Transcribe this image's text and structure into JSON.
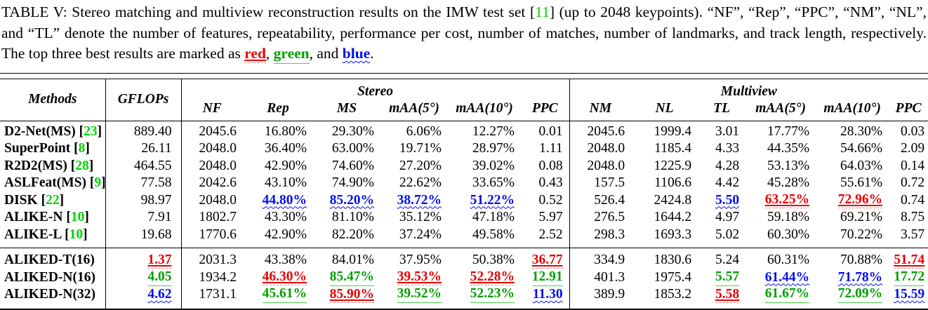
{
  "caption": {
    "segments": [
      {
        "style": "normal",
        "text": "TABLE V: Stereo matching and multiview reconstruction results on the IMW test set ["
      },
      {
        "style": "cite",
        "text": "11"
      },
      {
        "style": "normal",
        "text": "] (up to 2048 keypoints). “NF”, “Rep”, “PPC”, “NM”, “NL”, and “TL” denote the number of features, repeatability, performance per cost, number of matches, number of landmarks, and track length, respectively. The top three best results are marked as "
      },
      {
        "style": "red",
        "text": "red"
      },
      {
        "style": "normal",
        "text": ", "
      },
      {
        "style": "green",
        "text": "green"
      },
      {
        "style": "normal",
        "text": ", and "
      },
      {
        "style": "blue",
        "text": "blue"
      },
      {
        "style": "normal",
        "text": "."
      }
    ]
  },
  "colors": {
    "rank1": "#e80000",
    "rank2": "#00a000",
    "rank3": "#0010ee",
    "citation": "#00d400"
  },
  "table": {
    "cite_brackets": {
      "open": " [",
      "close": "]"
    },
    "header": {
      "methods": "Methods",
      "gflops": "GFLOPs",
      "stereo": "Stereo",
      "multiview": "Multiview",
      "stereo_cols": [
        "NF",
        "Rep",
        "MS",
        "mAA(5°)",
        "mAA(10°)",
        "PPC"
      ],
      "multiview_cols": [
        "NM",
        "NL",
        "TL",
        "mAA(5°)",
        "mAA(10°)",
        "PPC"
      ]
    },
    "groups": [
      {
        "rows": [
          {
            "method": "D2-Net(MS)",
            "cite": "23",
            "cells": [
              "889.40",
              "2045.6",
              "16.80%",
              "29.30%",
              "6.06%",
              "12.27%",
              "0.01",
              "2045.6",
              "1999.4",
              "3.01",
              "17.77%",
              "28.30%",
              "0.03"
            ]
          },
          {
            "method": "SuperPoint",
            "cite": "8",
            "cells": [
              "26.11",
              "2048.0",
              "36.40%",
              "63.00%",
              "19.71%",
              "28.97%",
              "1.11",
              "2048.0",
              "1185.4",
              "4.33",
              "44.35%",
              "54.66%",
              "2.09"
            ]
          },
          {
            "method": "R2D2(MS)",
            "cite": "28",
            "cells": [
              "464.55",
              "2048.0",
              "42.90%",
              "74.60%",
              "27.20%",
              "39.02%",
              "0.08",
              "2048.0",
              "1225.9",
              "4.28",
              "53.13%",
              "64.03%",
              "0.14"
            ]
          },
          {
            "method": "ASLFeat(MS)",
            "cite": "9",
            "cells": [
              "77.58",
              "2042.6",
              "43.10%",
              "74.90%",
              "22.62%",
              "33.65%",
              "0.43",
              "157.5",
              "1106.6",
              "4.42",
              "45.28%",
              "55.61%",
              "0.72"
            ]
          },
          {
            "method": "DISK",
            "cite": "22",
            "cells": [
              "98.97",
              "2048.0",
              {
                "v": "44.80%",
                "m": "blue"
              },
              {
                "v": "85.20%",
                "m": "blue"
              },
              {
                "v": "38.72%",
                "m": "blue"
              },
              {
                "v": "51.22%",
                "m": "blue"
              },
              "0.52",
              "526.4",
              "2424.8",
              {
                "v": "5.50",
                "m": "blue"
              },
              {
                "v": "63.25%",
                "m": "red"
              },
              {
                "v": "72.96%",
                "m": "red"
              },
              "0.74"
            ]
          },
          {
            "method": "ALIKE-N",
            "cite": "10",
            "cells": [
              "7.91",
              "1802.7",
              "43.30%",
              "81.10%",
              "35.12%",
              "47.18%",
              "5.97",
              "276.5",
              "1644.2",
              "4.97",
              "59.18%",
              "69.21%",
              "8.75"
            ]
          },
          {
            "method": "ALIKE-L",
            "cite": "10",
            "cells": [
              "19.68",
              "1770.6",
              "42.90%",
              "82.20%",
              "37.24%",
              "49.58%",
              "2.52",
              "298.3",
              "1693.3",
              "5.02",
              "60.30%",
              "70.22%",
              "3.57"
            ]
          }
        ]
      },
      {
        "rows": [
          {
            "method": "ALIKED-T(16)",
            "cite": null,
            "cells": [
              {
                "v": "1.37",
                "m": "red"
              },
              "2031.3",
              "43.38%",
              "84.01%",
              "37.95%",
              "50.38%",
              {
                "v": "36.77",
                "m": "red"
              },
              "334.9",
              "1830.6",
              "5.24",
              "60.31%",
              "70.88%",
              {
                "v": "51.74",
                "m": "red"
              }
            ]
          },
          {
            "method": "ALIKED-N(16)",
            "cite": null,
            "cells": [
              {
                "v": "4.05",
                "m": "green"
              },
              "1934.2",
              {
                "v": "46.30%",
                "m": "red"
              },
              {
                "v": "85.47%",
                "m": "green"
              },
              {
                "v": "39.53%",
                "m": "red"
              },
              {
                "v": "52.28%",
                "m": "red"
              },
              {
                "v": "12.91",
                "m": "green"
              },
              "401.3",
              "1975.4",
              {
                "v": "5.57",
                "m": "green"
              },
              {
                "v": "61.44%",
                "m": "blue"
              },
              {
                "v": "71.78%",
                "m": "blue"
              },
              {
                "v": "17.72",
                "m": "green"
              }
            ]
          },
          {
            "method": "ALIKED-N(32)",
            "cite": null,
            "cells": [
              {
                "v": "4.62",
                "m": "blue"
              },
              "1731.1",
              {
                "v": "45.61%",
                "m": "green"
              },
              {
                "v": "85.90%",
                "m": "red"
              },
              {
                "v": "39.52%",
                "m": "green"
              },
              {
                "v": "52.23%",
                "m": "green"
              },
              {
                "v": "11.30",
                "m": "blue"
              },
              "389.9",
              "1853.2",
              {
                "v": "5.58",
                "m": "red"
              },
              {
                "v": "61.67%",
                "m": "green"
              },
              {
                "v": "72.09%",
                "m": "green"
              },
              {
                "v": "15.59",
                "m": "blue"
              }
            ]
          }
        ]
      }
    ]
  }
}
